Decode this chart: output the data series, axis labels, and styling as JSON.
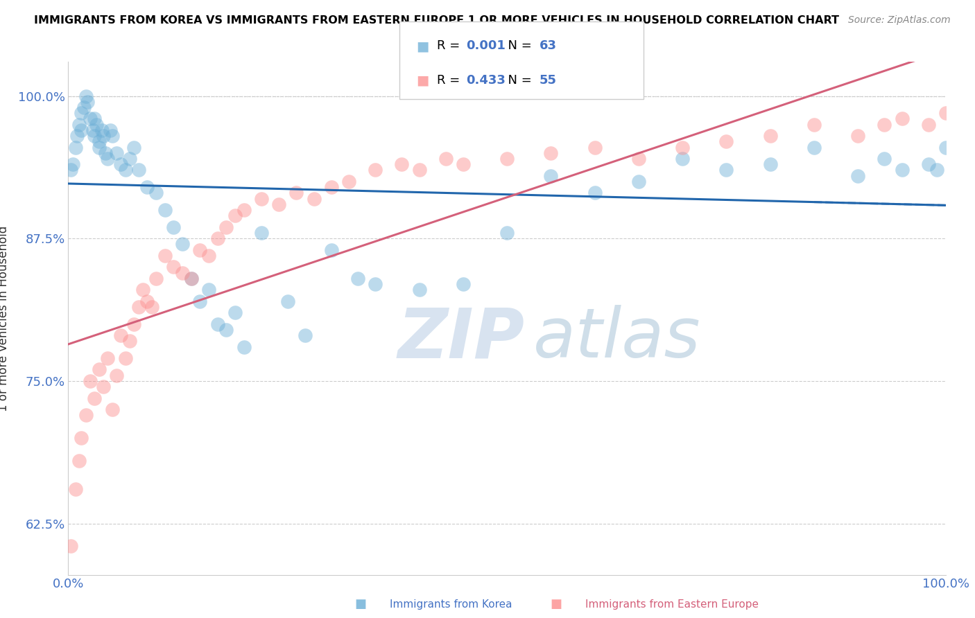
{
  "title": "IMMIGRANTS FROM KOREA VS IMMIGRANTS FROM EASTERN EUROPE 1 OR MORE VEHICLES IN HOUSEHOLD CORRELATION CHART",
  "source": "Source: ZipAtlas.com",
  "ylabel": "1 or more Vehicles in Household",
  "xlim": [
    0,
    100
  ],
  "ylim": [
    58,
    103
  ],
  "yticks": [
    62.5,
    75.0,
    87.5,
    100.0
  ],
  "korea_color": "#6baed6",
  "eastern_europe_color": "#fc8d8d",
  "korea_R": "0.001",
  "korea_N": "63",
  "eastern_europe_R": "0.433",
  "eastern_europe_N": "55",
  "legend_label_1": "Immigrants from Korea",
  "legend_label_2": "Immigrants from Eastern Europe",
  "watermark_zip": "ZIP",
  "watermark_atlas": "atlas",
  "korea_trend_color": "#2166ac",
  "eastern_trend_color": "#d4607a",
  "korea_x": [
    0.3,
    0.5,
    0.8,
    1.0,
    1.2,
    1.5,
    1.5,
    1.8,
    2.0,
    2.2,
    2.5,
    2.8,
    3.0,
    3.0,
    3.2,
    3.5,
    3.5,
    3.8,
    4.0,
    4.2,
    4.5,
    4.8,
    5.0,
    5.5,
    6.0,
    6.5,
    7.0,
    7.5,
    8.0,
    9.0,
    10.0,
    11.0,
    12.0,
    13.0,
    14.0,
    15.0,
    16.0,
    17.0,
    18.0,
    19.0,
    20.0,
    22.0,
    25.0,
    27.0,
    30.0,
    33.0,
    35.0,
    40.0,
    45.0,
    50.0,
    55.0,
    60.0,
    65.0,
    70.0,
    75.0,
    80.0,
    85.0,
    90.0,
    93.0,
    95.0,
    98.0,
    99.0,
    100.0
  ],
  "korea_y": [
    93.5,
    94.0,
    95.5,
    96.5,
    97.5,
    98.5,
    97.0,
    99.0,
    100.0,
    99.5,
    98.0,
    97.0,
    96.5,
    98.0,
    97.5,
    96.0,
    95.5,
    97.0,
    96.5,
    95.0,
    94.5,
    97.0,
    96.5,
    95.0,
    94.0,
    93.5,
    94.5,
    95.5,
    93.5,
    92.0,
    91.5,
    90.0,
    88.5,
    87.0,
    84.0,
    82.0,
    83.0,
    80.0,
    79.5,
    81.0,
    78.0,
    88.0,
    82.0,
    79.0,
    86.5,
    84.0,
    83.5,
    83.0,
    83.5,
    88.0,
    93.0,
    91.5,
    92.5,
    94.5,
    93.5,
    94.0,
    95.5,
    93.0,
    94.5,
    93.5,
    94.0,
    93.5,
    95.5
  ],
  "eastern_europe_x": [
    0.3,
    0.8,
    1.2,
    1.5,
    2.0,
    2.5,
    3.0,
    3.5,
    4.0,
    4.5,
    5.0,
    5.5,
    6.0,
    6.5,
    7.0,
    7.5,
    8.0,
    8.5,
    9.0,
    9.5,
    10.0,
    11.0,
    12.0,
    13.0,
    14.0,
    15.0,
    16.0,
    17.0,
    18.0,
    19.0,
    20.0,
    22.0,
    24.0,
    26.0,
    28.0,
    30.0,
    32.0,
    35.0,
    38.0,
    40.0,
    43.0,
    45.0,
    50.0,
    55.0,
    60.0,
    65.0,
    70.0,
    75.0,
    80.0,
    85.0,
    90.0,
    93.0,
    95.0,
    98.0,
    100.0
  ],
  "eastern_europe_y": [
    60.5,
    65.5,
    68.0,
    70.0,
    72.0,
    75.0,
    73.5,
    76.0,
    74.5,
    77.0,
    72.5,
    75.5,
    79.0,
    77.0,
    78.5,
    80.0,
    81.5,
    83.0,
    82.0,
    81.5,
    84.0,
    86.0,
    85.0,
    84.5,
    84.0,
    86.5,
    86.0,
    87.5,
    88.5,
    89.5,
    90.0,
    91.0,
    90.5,
    91.5,
    91.0,
    92.0,
    92.5,
    93.5,
    94.0,
    93.5,
    94.5,
    94.0,
    94.5,
    95.0,
    95.5,
    94.5,
    95.5,
    96.0,
    96.5,
    97.5,
    96.5,
    97.5,
    98.0,
    97.5,
    98.5
  ]
}
